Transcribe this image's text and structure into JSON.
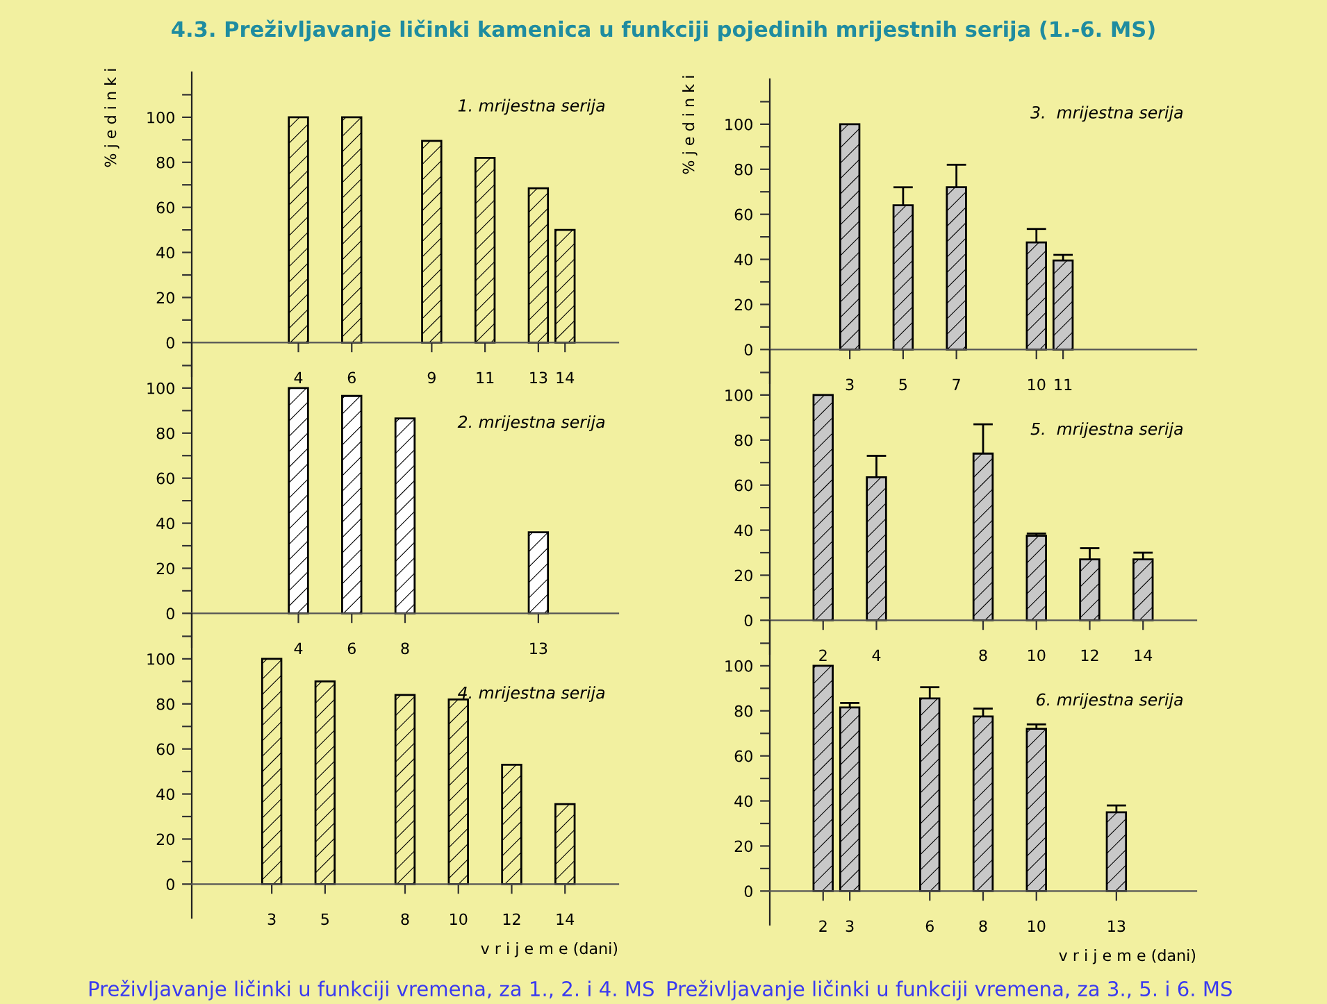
{
  "chart_data": [
    {
      "type": "bar",
      "title": "1. mrijestna serija",
      "ylabel": "% j e d i n k i",
      "annotations": [
        "4.3. Preživljavanje ličinki kamenica u funkciji pojedinih mrijestnih serija (1.-6. MS)"
      ],
      "x": [
        4,
        6,
        9,
        11,
        13,
        14
      ],
      "values": [
        100,
        100,
        89.5,
        82,
        68.5,
        50
      ],
      "color": "#f2f0a0",
      "xlim": [
        0,
        16
      ],
      "xticks": [
        4,
        6,
        9,
        11,
        13,
        14
      ],
      "ylim": [
        -15,
        120
      ],
      "yticks": [
        0,
        {
          "value": 10,
          "label": null
        },
        20,
        {
          "value": 30,
          "label": null
        },
        40,
        {
          "value": 50,
          "label": null
        },
        60,
        {
          "value": 70,
          "label": null
        },
        80,
        {
          "value": 90,
          "label": null
        },
        100,
        {
          "value": 110,
          "label": null
        }
      ],
      "grid": false,
      "legend": false
    },
    {
      "type": "bar",
      "title": "3.  mrijestna serija",
      "ylabel": "% j e d i n k i",
      "x": [
        3,
        5,
        7,
        10,
        11
      ],
      "values": [
        100,
        64,
        72,
        47.5,
        39.5
      ],
      "errors": [
        null,
        8,
        10,
        6,
        2.5
      ],
      "color": "#c8c8c8",
      "xlim": [
        0,
        16
      ],
      "xticks": [
        3,
        5,
        7,
        10,
        11
      ],
      "ylim": [
        -15,
        120
      ],
      "yticks": [
        0,
        {
          "value": 10,
          "label": null
        },
        20,
        {
          "value": 30,
          "label": null
        },
        40,
        {
          "value": 50,
          "label": null
        },
        60,
        {
          "value": 70,
          "label": null
        },
        80,
        {
          "value": 90,
          "label": null
        },
        100,
        {
          "value": 110,
          "label": null
        }
      ],
      "grid": false,
      "legend": false
    },
    {
      "type": "bar",
      "title": "2. mrijestna serija",
      "x": [
        4,
        6,
        8,
        13
      ],
      "values": [
        100,
        96.5,
        86.5,
        36
      ],
      "color": "#ffffff",
      "xlim": [
        0,
        16
      ],
      "xticks": [
        4,
        6,
        8,
        13
      ],
      "ylim": [
        -15,
        120
      ],
      "yticks": [
        0,
        {
          "value": 10,
          "label": null
        },
        20,
        {
          "value": 30,
          "label": null
        },
        40,
        {
          "value": 50,
          "label": null
        },
        60,
        {
          "value": 70,
          "label": null
        },
        80,
        {
          "value": 90,
          "label": null
        },
        100,
        {
          "value": 110,
          "label": null
        }
      ],
      "grid": false,
      "legend": false
    },
    {
      "type": "bar",
      "title": "5.  mrijestna serija",
      "x": [
        2,
        4,
        8,
        10,
        12,
        14
      ],
      "values": [
        100,
        63.5,
        74,
        37.5,
        27,
        27
      ],
      "errors": [
        null,
        9.5,
        13,
        1,
        5,
        3
      ],
      "color": "#c8c8c8",
      "xlim": [
        0,
        16
      ],
      "xticks": [
        2,
        4,
        8,
        10,
        12,
        14
      ],
      "ylim": [
        -15,
        120
      ],
      "yticks": [
        0,
        {
          "value": 10,
          "label": null
        },
        20,
        {
          "value": 30,
          "label": null
        },
        40,
        {
          "value": 50,
          "label": null
        },
        60,
        {
          "value": 70,
          "label": null
        },
        80,
        {
          "value": 90,
          "label": null
        },
        100,
        {
          "value": 110,
          "label": null
        }
      ],
      "grid": false,
      "legend": false
    },
    {
      "type": "bar",
      "title": "4. mrijestna serija",
      "xlabel": "v r i j e m e (dani)",
      "annotations": [
        "Preživljavanje ličinki u funkciji vremena, za 1., 2. i 4. MS"
      ],
      "x": [
        3,
        5,
        8,
        10,
        12,
        14
      ],
      "values": [
        100,
        90,
        84,
        82,
        53,
        35.5
      ],
      "color": "#f2f0a0",
      "xlim": [
        0,
        16
      ],
      "xticks": [
        3,
        5,
        8,
        10,
        12,
        14
      ],
      "ylim": [
        -15,
        120
      ],
      "yticks": [
        0,
        {
          "value": 10,
          "label": null
        },
        20,
        {
          "value": 30,
          "label": null
        },
        40,
        {
          "value": 50,
          "label": null
        },
        60,
        {
          "value": 70,
          "label": null
        },
        80,
        {
          "value": 90,
          "label": null
        },
        100,
        {
          "value": 110,
          "label": null
        }
      ],
      "grid": false,
      "legend": false
    },
    {
      "type": "bar",
      "title": "6. mrijestna serija",
      "xlabel": "v r i j e m e (dani)",
      "annotations": [
        "Preživljavanje ličinki u funkciji vremena, za 3., 5. i 6. MS"
      ],
      "x": [
        2,
        3,
        6,
        8,
        10,
        13
      ],
      "values": [
        100,
        81.5,
        85.5,
        77.5,
        72,
        35
      ],
      "errors": [
        null,
        2,
        5,
        3.5,
        2,
        3
      ],
      "color": "#c8c8c8",
      "xlim": [
        0,
        16
      ],
      "xticks": [
        2,
        3,
        6,
        8,
        10,
        13
      ],
      "ylim": [
        -15,
        120
      ],
      "yticks": [
        0,
        {
          "value": 10,
          "label": null
        },
        20,
        {
          "value": 30,
          "label": null
        },
        40,
        {
          "value": 50,
          "label": null
        },
        60,
        {
          "value": 70,
          "label": null
        },
        80,
        {
          "value": 90,
          "label": null
        },
        100,
        {
          "value": 110,
          "label": null
        }
      ],
      "grid": false,
      "legend": false
    }
  ]
}
